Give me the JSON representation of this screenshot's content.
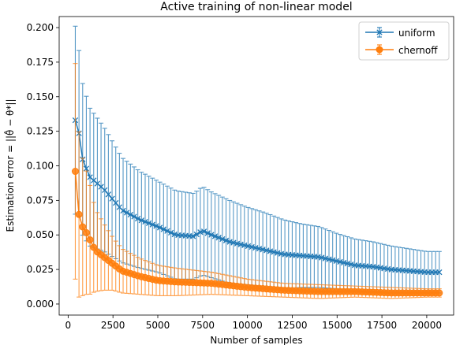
{
  "chart_data": {
    "type": "line",
    "title": "Active training of non-linear model",
    "xlabel": "Number of samples",
    "ylabel": "Estimation error $=||\\hat{\\theta} - \\theta^*||$",
    "ylabel_display": "Estimation error  = ||θ̂ − θ*||",
    "xlim": [
      -500,
      21500
    ],
    "ylim": [
      -0.008,
      0.208
    ],
    "xticks": [
      0,
      2500,
      5000,
      7500,
      10000,
      12500,
      15000,
      17500,
      20000
    ],
    "yticks": [
      0.0,
      0.025,
      0.05,
      0.075,
      0.1,
      0.125,
      0.15,
      0.175,
      0.2
    ],
    "legend_placement": "top-right",
    "grid": false,
    "x_range": {
      "start": 400,
      "end": 20700,
      "points": 100
    },
    "series": [
      {
        "name": "uniform",
        "color": "#1f77b4",
        "marker": "x",
        "anchors_x": [
          400,
          600,
          800,
          1200,
          2000,
          3000,
          4000,
          5000,
          6000,
          7000,
          7500,
          8000,
          9000,
          10000,
          11000,
          12000,
          13000,
          14000,
          15000,
          16000,
          17000,
          18000,
          19000,
          20000,
          20700
        ],
        "anchors_mean": [
          0.133,
          0.124,
          0.105,
          0.092,
          0.083,
          0.068,
          0.061,
          0.056,
          0.05,
          0.049,
          0.053,
          0.05,
          0.045,
          0.042,
          0.039,
          0.036,
          0.035,
          0.034,
          0.031,
          0.028,
          0.027,
          0.025,
          0.024,
          0.023,
          0.023
        ],
        "anchors_err": [
          0.068,
          0.06,
          0.055,
          0.05,
          0.045,
          0.038,
          0.035,
          0.033,
          0.032,
          0.031,
          0.032,
          0.031,
          0.03,
          0.028,
          0.027,
          0.025,
          0.023,
          0.022,
          0.02,
          0.019,
          0.018,
          0.017,
          0.016,
          0.015,
          0.015
        ]
      },
      {
        "name": "chernoff",
        "color": "#ff7f0e",
        "marker": "o",
        "anchors_x": [
          400,
          600,
          800,
          1000,
          1200,
          1500,
          2000,
          2500,
          3000,
          4000,
          5000,
          6000,
          8000,
          10000,
          12000,
          14000,
          16000,
          18000,
          20000,
          20700
        ],
        "anchors_mean": [
          0.096,
          0.065,
          0.056,
          0.052,
          0.047,
          0.039,
          0.034,
          0.029,
          0.024,
          0.02,
          0.017,
          0.016,
          0.015,
          0.012,
          0.01,
          0.009,
          0.009,
          0.008,
          0.008,
          0.008
        ],
        "anchors_err": [
          0.078,
          0.06,
          0.05,
          0.045,
          0.04,
          0.03,
          0.024,
          0.019,
          0.016,
          0.013,
          0.011,
          0.01,
          0.008,
          0.006,
          0.005,
          0.005,
          0.004,
          0.004,
          0.003,
          0.003
        ]
      }
    ]
  }
}
